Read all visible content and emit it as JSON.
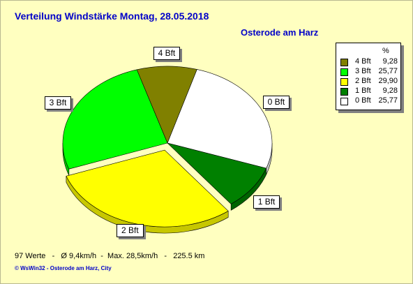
{
  "title": "Verteilung Windstärke  Montag, 28.05.2018",
  "location": "Osterode am Harz",
  "chart_data": {
    "type": "pie",
    "unit": "%",
    "slices": [
      {
        "label": "4 Bft",
        "value": 9.28,
        "color": "#808000"
      },
      {
        "label": "0 Bft",
        "value": 25.77,
        "color": "#ffffff"
      },
      {
        "label": "1 Bft",
        "value": 9.28,
        "color": "#008000"
      },
      {
        "label": "2 Bft",
        "value": 29.9,
        "color": "#ffff00"
      },
      {
        "label": "3 Bft",
        "value": 25.77,
        "color": "#00ff00"
      }
    ],
    "legend": {
      "header": "%",
      "entries": [
        {
          "label": "4 Bft",
          "value": "9,28",
          "color": "#808000"
        },
        {
          "label": "3 Bft",
          "value": "25,77",
          "color": "#00ff00"
        },
        {
          "label": "2 Bft",
          "value": "29,90",
          "color": "#ffff00"
        },
        {
          "label": "1 Bft",
          "value": "9,28",
          "color": "#008000"
        },
        {
          "label": "0 Bft",
          "value": "25,77",
          "color": "#ffffff"
        }
      ]
    }
  },
  "footer": "97 Werte   -   Ø 9,4km/h  -  Max. 28,5km/h   -   225.5 km",
  "credit": "© WsWin32   -   Osterode am Harz, City"
}
